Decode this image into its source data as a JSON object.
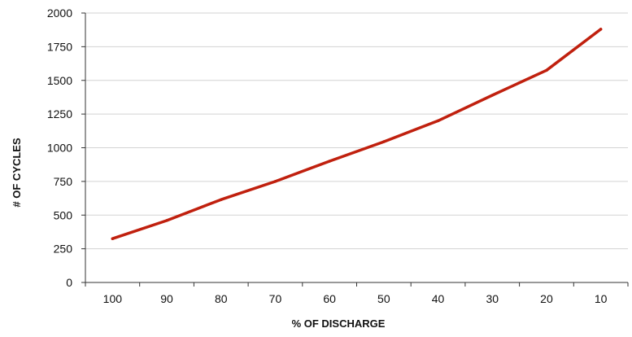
{
  "chart_data": {
    "type": "line",
    "title": "",
    "xlabel": "% OF DISCHARGE",
    "ylabel": "# OF CYCLES",
    "categories": [
      "100",
      "90",
      "80",
      "70",
      "60",
      "50",
      "40",
      "30",
      "20",
      "10"
    ],
    "series": [
      {
        "values": [
          325,
          460,
          615,
          750,
          900,
          1045,
          1200,
          1390,
          1575,
          1880
        ],
        "color": "#c0200e"
      }
    ],
    "ylim": [
      0,
      2000
    ],
    "yticks": [
      0,
      250,
      500,
      750,
      1000,
      1250,
      1500,
      1750,
      2000
    ],
    "grid": "horizontal",
    "legend": "none",
    "colors": {
      "gridline": "#d3d3d3",
      "axis": "#333333",
      "text": "#111111"
    }
  }
}
